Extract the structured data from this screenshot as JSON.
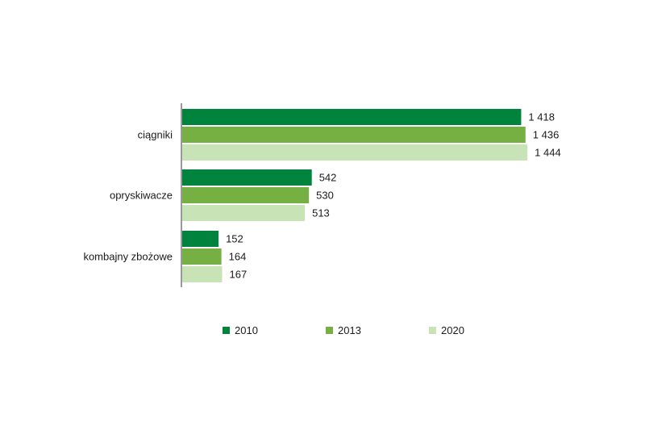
{
  "chart_data": {
    "type": "bar",
    "orientation": "horizontal",
    "categories": [
      "ciągniki",
      "opryskiwacze",
      "kombajny zbożowe"
    ],
    "series": [
      {
        "name": "2010",
        "color": "#00843d",
        "values": [
          1418,
          542,
          152
        ],
        "labels": [
          "1 418",
          "542",
          "152"
        ]
      },
      {
        "name": "2013",
        "color": "#76b043",
        "values": [
          1436,
          530,
          164
        ],
        "labels": [
          "1 436",
          "530",
          "164"
        ]
      },
      {
        "name": "2020",
        "color": "#c8e3b6",
        "values": [
          1444,
          513,
          167
        ],
        "labels": [
          "1 444",
          "513",
          "167"
        ]
      }
    ],
    "xlim": [
      0,
      1670
    ],
    "grid": false,
    "legend_position": "bottom"
  }
}
